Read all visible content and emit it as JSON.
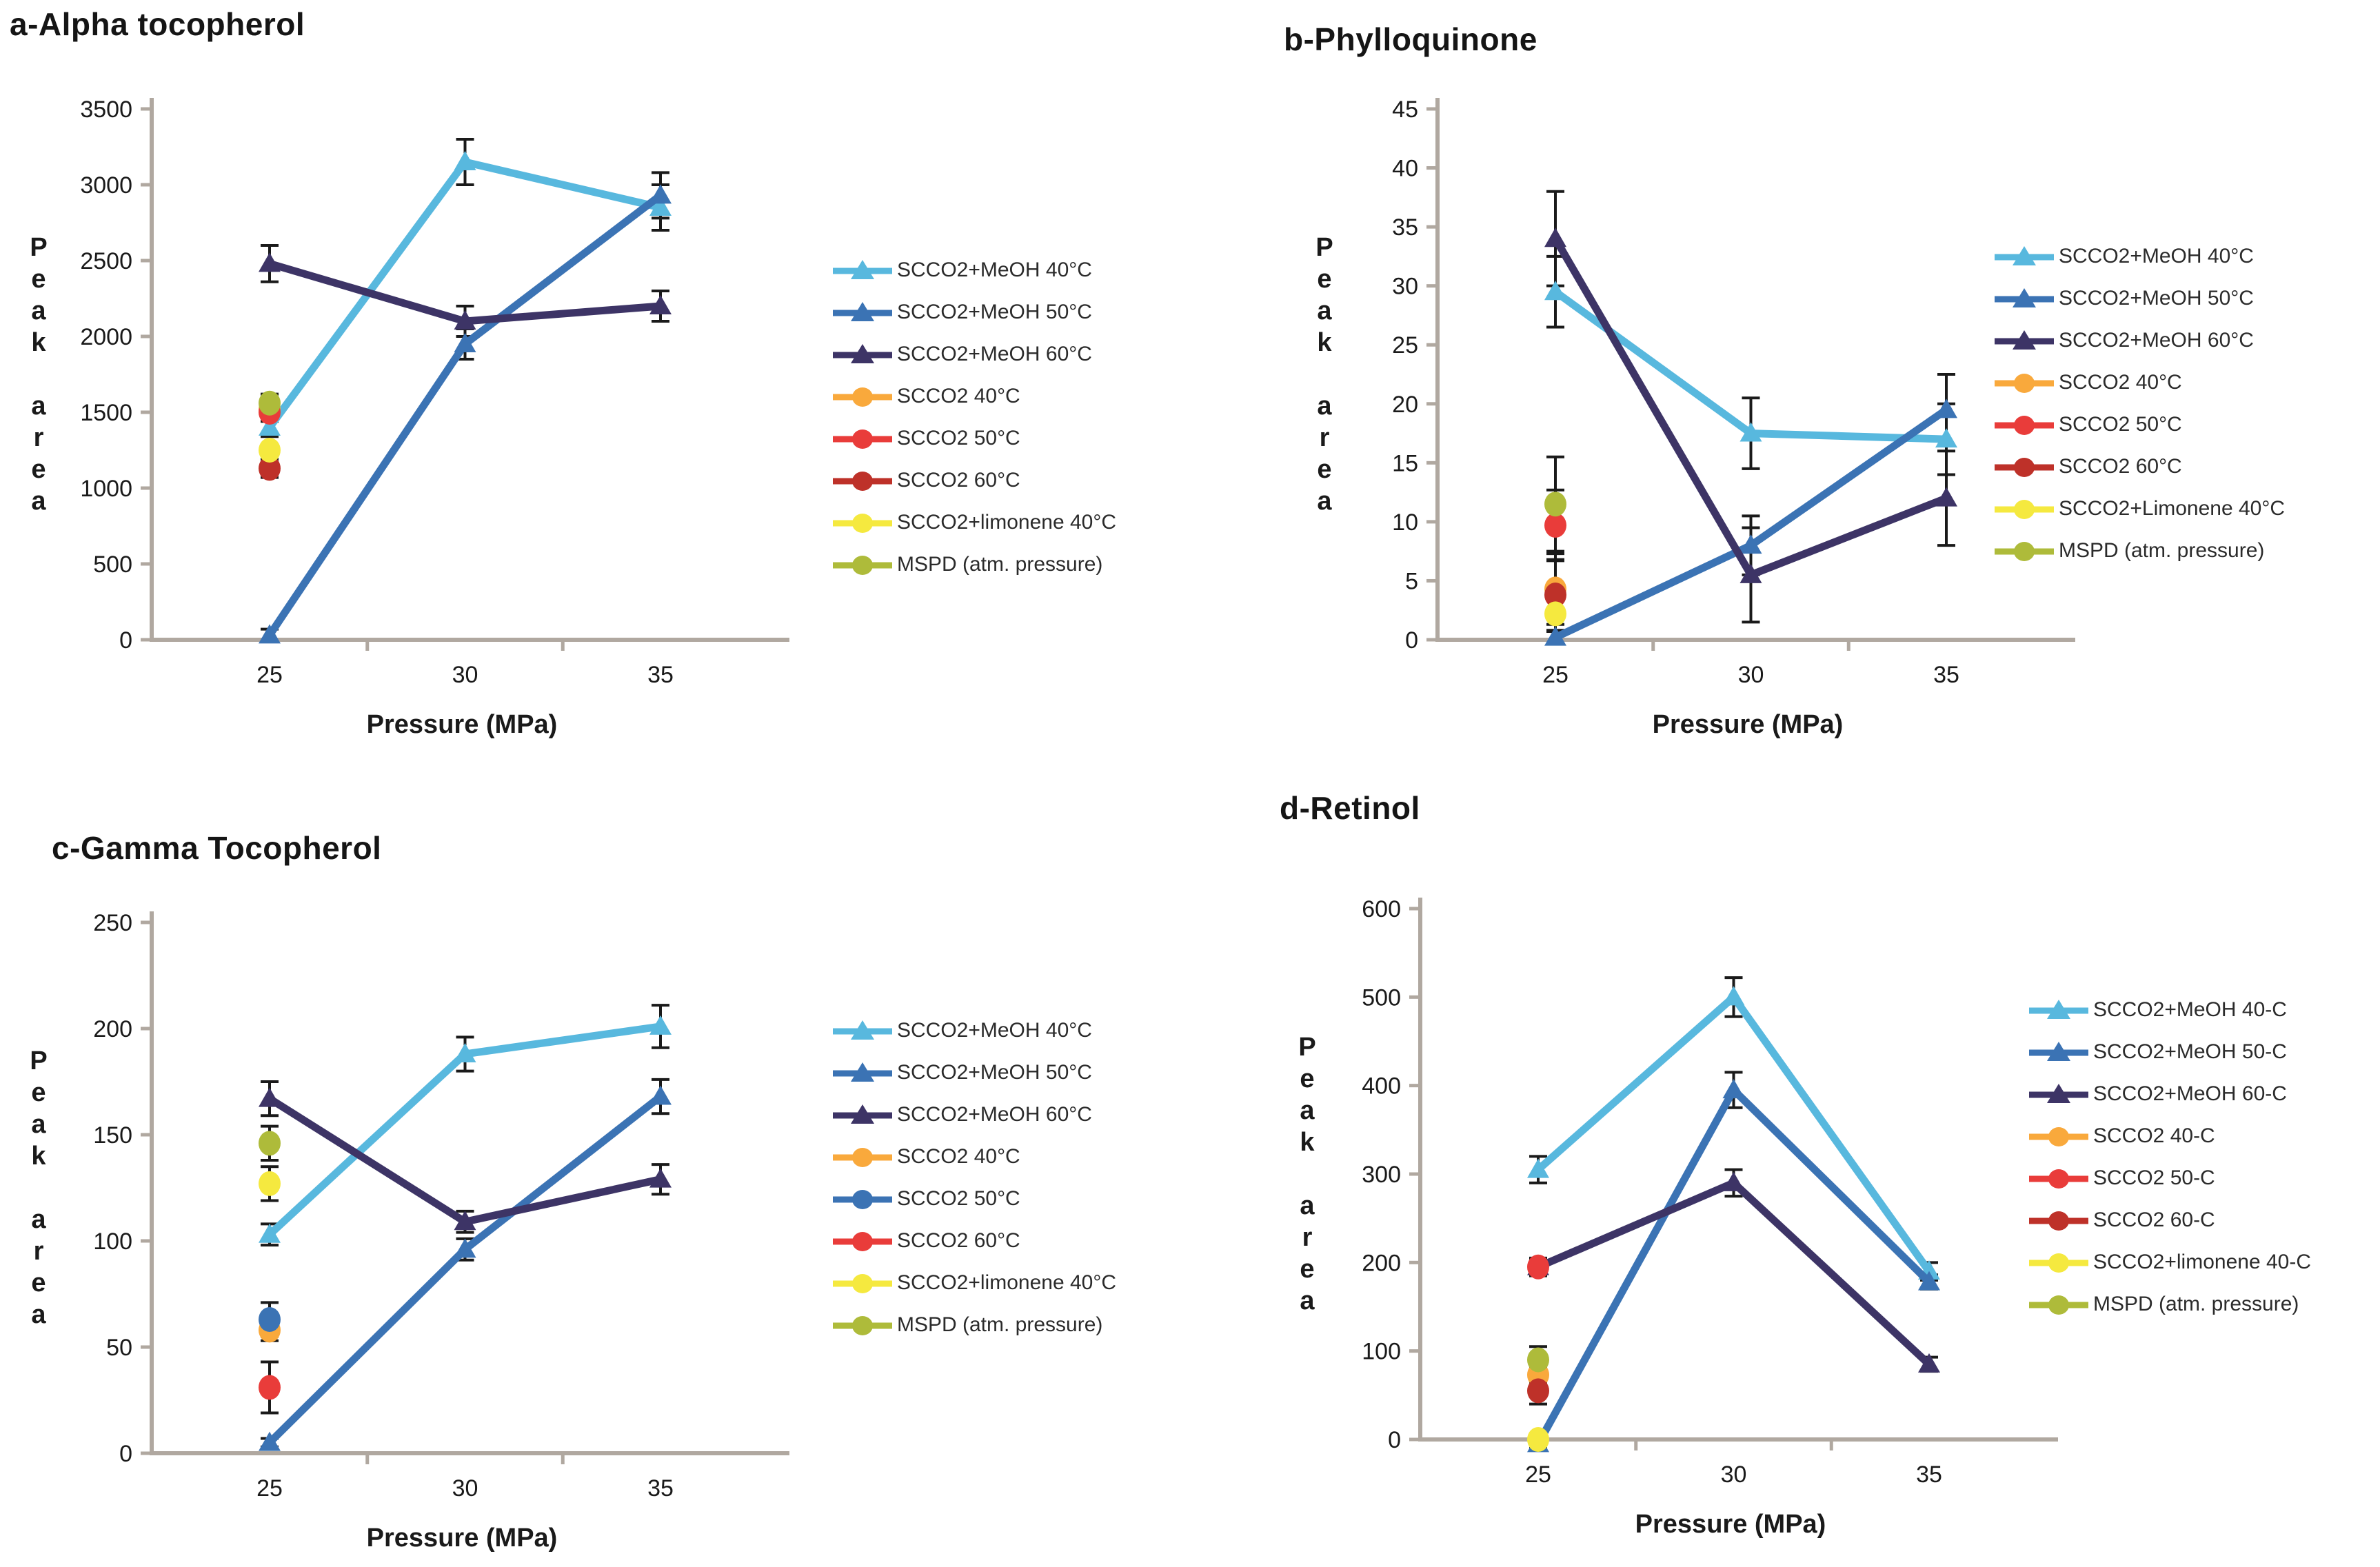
{
  "figure": {
    "background": "#ffffff",
    "axis_color": "#b0a8a0",
    "error_bar_color": "#1a1a1a",
    "ylabel_text": "Peak area",
    "ylabel_stacked": [
      "P",
      "e",
      "a",
      "k",
      "",
      "a",
      "r",
      "e",
      "a"
    ]
  },
  "chart_data": [
    {
      "id": "a",
      "type": "line",
      "title": "a-Alpha tocopherol",
      "xlabel": "Pressure (MPa)",
      "ylabel": "Peak area",
      "categories": [
        "25",
        "30",
        "35"
      ],
      "ylim": [
        0,
        3500
      ],
      "ytick_step": 500,
      "grid": false,
      "legend_position": "right",
      "line_series": [
        {
          "name": "SCCO2+MeOH 40°C",
          "color": "#58b8de",
          "marker": "triangle",
          "values": [
            1400,
            3150,
            2850
          ],
          "errors": [
            60,
            150,
            150
          ]
        },
        {
          "name": "SCCO2+MeOH 50°C",
          "color": "#3b73b4",
          "marker": "triangle",
          "values": [
            30,
            1950,
            2930
          ],
          "errors": [
            40,
            100,
            150
          ]
        },
        {
          "name": "SCCO2+MeOH 60°C",
          "color": "#3d3466",
          "marker": "triangle",
          "values": [
            2480,
            2100,
            2200
          ],
          "errors": [
            120,
            100,
            100
          ]
        }
      ],
      "point_series": [
        {
          "name": "SCCO2 40°C",
          "color": "#f9a93c",
          "category": "25",
          "value": 1520,
          "error": 0
        },
        {
          "name": "SCCO2 50°C",
          "color": "#e93c3a",
          "category": "25",
          "value": 1500,
          "error": 60
        },
        {
          "name": "SCCO2 60°C",
          "color": "#be3129",
          "category": "25",
          "value": 1130,
          "error": 60
        },
        {
          "name": "SCCO2+limonene 40°C",
          "color": "#f5e93f",
          "category": "25",
          "value": 1250,
          "error": 0
        },
        {
          "name": "MSPD (atm. pressure)",
          "color": "#aebb3a",
          "category": "25",
          "value": 1560,
          "error": 60
        }
      ]
    },
    {
      "id": "b",
      "type": "line",
      "title": "b-Phylloquinone",
      "xlabel": "Pressure (MPa)",
      "ylabel": "Peak area",
      "categories": [
        "25",
        "30",
        "35"
      ],
      "ylim": [
        0,
        45
      ],
      "ytick_step": 5,
      "grid": false,
      "legend_position": "right",
      "line_series": [
        {
          "name": "SCCO2+MeOH 40°C",
          "color": "#58b8de",
          "marker": "triangle",
          "values": [
            29.5,
            17.5,
            17
          ],
          "errors": [
            3,
            3,
            3
          ]
        },
        {
          "name": "SCCO2+MeOH 50°C",
          "color": "#3b73b4",
          "marker": "triangle",
          "values": [
            0.2,
            8,
            19.5
          ],
          "errors": [
            0.5,
            2.5,
            3
          ]
        },
        {
          "name": "SCCO2+MeOH 60°C",
          "color": "#3d3466",
          "marker": "triangle",
          "values": [
            34,
            5.5,
            12
          ],
          "errors": [
            4,
            4,
            4
          ]
        }
      ],
      "point_series": [
        {
          "name": "SCCO2 40°C",
          "color": "#f9a93c",
          "category": "25",
          "value": 4.3,
          "error": 3
        },
        {
          "name": "SCCO2 50°C",
          "color": "#e93c3a",
          "category": "25",
          "value": 9.7,
          "error": 3
        },
        {
          "name": "SCCO2 60°C",
          "color": "#be3129",
          "category": "25",
          "value": 3.8,
          "error": 3
        },
        {
          "name": "SCCO2+Limonene 40°C",
          "color": "#f5e93f",
          "category": "25",
          "value": 2.2,
          "error": 1.5
        },
        {
          "name": "MSPD (atm. pressure)",
          "color": "#aebb3a",
          "category": "25",
          "value": 11.5,
          "error": 4
        }
      ]
    },
    {
      "id": "c",
      "type": "line",
      "title": "c-Gamma Tocopherol",
      "xlabel": "Pressure (MPa)",
      "ylabel": "Peak area",
      "categories": [
        "25",
        "30",
        "35"
      ],
      "ylim": [
        0,
        250
      ],
      "ytick_step": 50,
      "grid": false,
      "legend_position": "right",
      "line_series": [
        {
          "name": "SCCO2+MeOH 40°C",
          "color": "#58b8de",
          "marker": "triangle",
          "values": [
            103,
            188,
            201
          ],
          "errors": [
            5,
            8,
            10
          ]
        },
        {
          "name": "SCCO2+MeOH 50°C",
          "color": "#3b73b4",
          "marker": "triangle",
          "values": [
            5,
            96,
            168
          ],
          "errors": [
            2,
            5,
            8
          ]
        },
        {
          "name": "SCCO2+MeOH 60°C",
          "color": "#3d3466",
          "marker": "triangle",
          "values": [
            167,
            109,
            129
          ],
          "errors": [
            8,
            5,
            7
          ]
        }
      ],
      "point_series": [
        {
          "name": "SCCO2 40°C",
          "color": "#f9a93c",
          "category": "25",
          "value": 58,
          "error": 5
        },
        {
          "name": "SCCO2 50°C",
          "color": "#3b73b4",
          "category": "25",
          "value": 63,
          "error": 8
        },
        {
          "name": "SCCO2 60°C",
          "color": "#e93c3a",
          "category": "25",
          "value": 31,
          "error": 12
        },
        {
          "name": "SCCO2+limonene 40°C",
          "color": "#f5e93f",
          "category": "25",
          "value": 127,
          "error": 8
        },
        {
          "name": "MSPD (atm. pressure)",
          "color": "#aebb3a",
          "category": "25",
          "value": 146,
          "error": 8
        }
      ]
    },
    {
      "id": "d",
      "type": "line",
      "title": "d-Retinol",
      "xlabel": "Pressure (MPa)",
      "ylabel": "Peak area",
      "categories": [
        "25",
        "30",
        "35"
      ],
      "ylim": [
        0,
        600
      ],
      "ytick_step": 100,
      "grid": false,
      "legend_position": "right",
      "line_series": [
        {
          "name": "SCCO2+MeOH 40-C",
          "color": "#58b8de",
          "marker": "triangle",
          "values": [
            305,
            500,
            190
          ],
          "errors": [
            15,
            22,
            10
          ]
        },
        {
          "name": "SCCO2+MeOH 50-C",
          "color": "#3b73b4",
          "marker": "triangle",
          "values": [
            -5,
            395,
            178
          ],
          "errors": [
            5,
            20,
            8
          ]
        },
        {
          "name": "SCCO2+MeOH 60-C",
          "color": "#3d3466",
          "marker": "triangle",
          "values": [
            195,
            290,
            85
          ],
          "errors": [
            8,
            15,
            8
          ]
        }
      ],
      "point_series": [
        {
          "name": "SCCO2 40-C",
          "color": "#f9a93c",
          "category": "25",
          "value": 73,
          "error": 8
        },
        {
          "name": "SCCO2 50-C",
          "color": "#e93c3a",
          "category": "25",
          "value": 195,
          "error": 10
        },
        {
          "name": "SCCO2 60-C",
          "color": "#be3129",
          "category": "25",
          "value": 55,
          "error": 15
        },
        {
          "name": "SCCO2+limonene 40-C",
          "color": "#f5e93f",
          "category": "25",
          "value": 0,
          "error": 2
        },
        {
          "name": "MSPD (atm. pressure)",
          "color": "#aebb3a",
          "category": "25",
          "value": 90,
          "error": 15
        }
      ]
    }
  ]
}
